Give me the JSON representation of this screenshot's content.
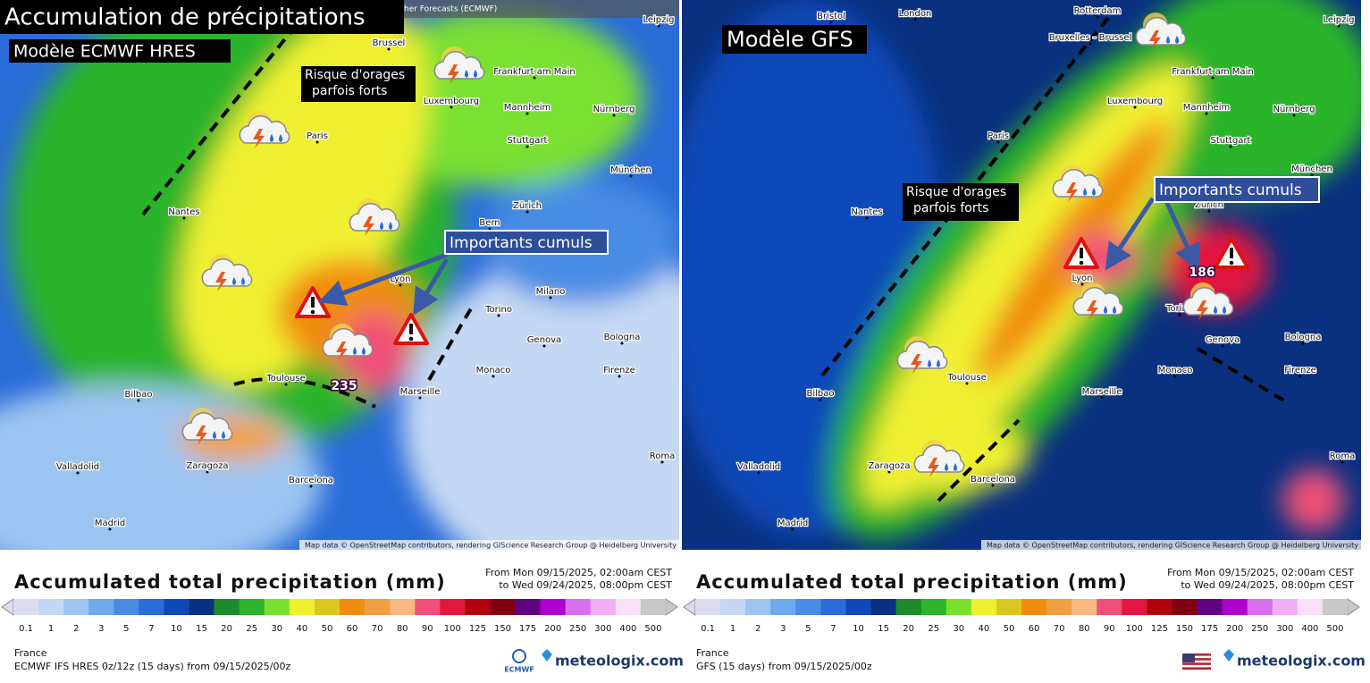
{
  "title": "Accumulation de précipitations",
  "header_fragment": "her Forecasts (ECMWF)",
  "panels": [
    {
      "model": "Modèle ECMWF HRES",
      "storm_note": [
        "Risque d'orages",
        "parfois forts"
      ],
      "heavy_note": "Importants cumuls",
      "max_label": "235",
      "cities": [
        "Leipzig",
        "Brussel",
        "Frankfurt am Main",
        "Luxembourg",
        "Mannheim",
        "Nürnberg",
        "Paris",
        "Stuttgart",
        "München",
        "Nantes",
        "Bern",
        "Zürich",
        "Lyon",
        "Milano",
        "Torino",
        "Bologna",
        "Genova",
        "Monaco",
        "Firenze",
        "Marseille",
        "Toulouse",
        "Bilbao",
        "Valladolid",
        "Zaragoza",
        "Barcelona",
        "Madrid",
        "Roma"
      ],
      "attribution": "Map data © OpenStreetMap contributors, rendering GIScience Research Group @ Heidelberg University",
      "legend": {
        "title": "Accumulated total precipitation (mm)",
        "period": [
          "From Mon 09/15/2025, 02:00am CEST",
          "to Wed 09/24/2025, 08:00pm CEST"
        ],
        "region": "France",
        "run": "ECMWF IFS HRES 0z/12z (15 days) from 09/15/2025/00z",
        "logo": "ECMWF",
        "brand": "meteologix.com"
      }
    },
    {
      "model": "Modèle GFS",
      "storm_note": [
        "Risque d'orages",
        "parfois forts"
      ],
      "heavy_note": "Importants cumuls",
      "max_label": "186",
      "cities": [
        "Bristol",
        "London",
        "Rotterdam",
        "Bruxelles - Brussel",
        "Leipzig",
        "Frankfurt am Main",
        "Luxembourg",
        "Mannheim",
        "Nürnberg",
        "Paris",
        "Stuttgart",
        "München",
        "Nantes",
        "Zürich",
        "Lyon",
        "Torino",
        "Genova",
        "Bologna",
        "Monaco",
        "Firenze",
        "Marseille",
        "Toulouse",
        "Bilbao",
        "Valladolid",
        "Zaragoza",
        "Barcelona",
        "Madrid",
        "Roma"
      ],
      "attribution": "Map data © OpenStreetMap contributors, rendering GIScience Research Group @ Heidelberg University",
      "legend": {
        "title": "Accumulated total precipitation (mm)",
        "period": [
          "From Mon 09/15/2025, 02:00am CEST",
          "to Wed 09/24/2025, 08:00pm CEST"
        ],
        "region": "France",
        "run": "GFS (15 days) from 09/15/2025/00z",
        "brand": "meteologix.com"
      }
    }
  ],
  "scale": {
    "levels": [
      0.1,
      1,
      2,
      3,
      5,
      7,
      10,
      15,
      20,
      25,
      30,
      40,
      50,
      60,
      70,
      80,
      90,
      100,
      125,
      150,
      175,
      200,
      250,
      300,
      400,
      500
    ],
    "colors": [
      "#dcdcf0",
      "#c4d8f4",
      "#9cc4f0",
      "#70a8ec",
      "#4a8ce4",
      "#2a6cd8",
      "#1048b8",
      "#0a3080",
      "#1a8c2c",
      "#2cb42c",
      "#7ae030",
      "#f0f030",
      "#d8c820",
      "#f08c10",
      "#f0a040",
      "#f8b880",
      "#f05078",
      "#e01840",
      "#b00010",
      "#800010",
      "#600080",
      "#b000d0",
      "#d870f0",
      "#f0b0f8",
      "#f8e0f8",
      "#c8c8c8"
    ]
  }
}
